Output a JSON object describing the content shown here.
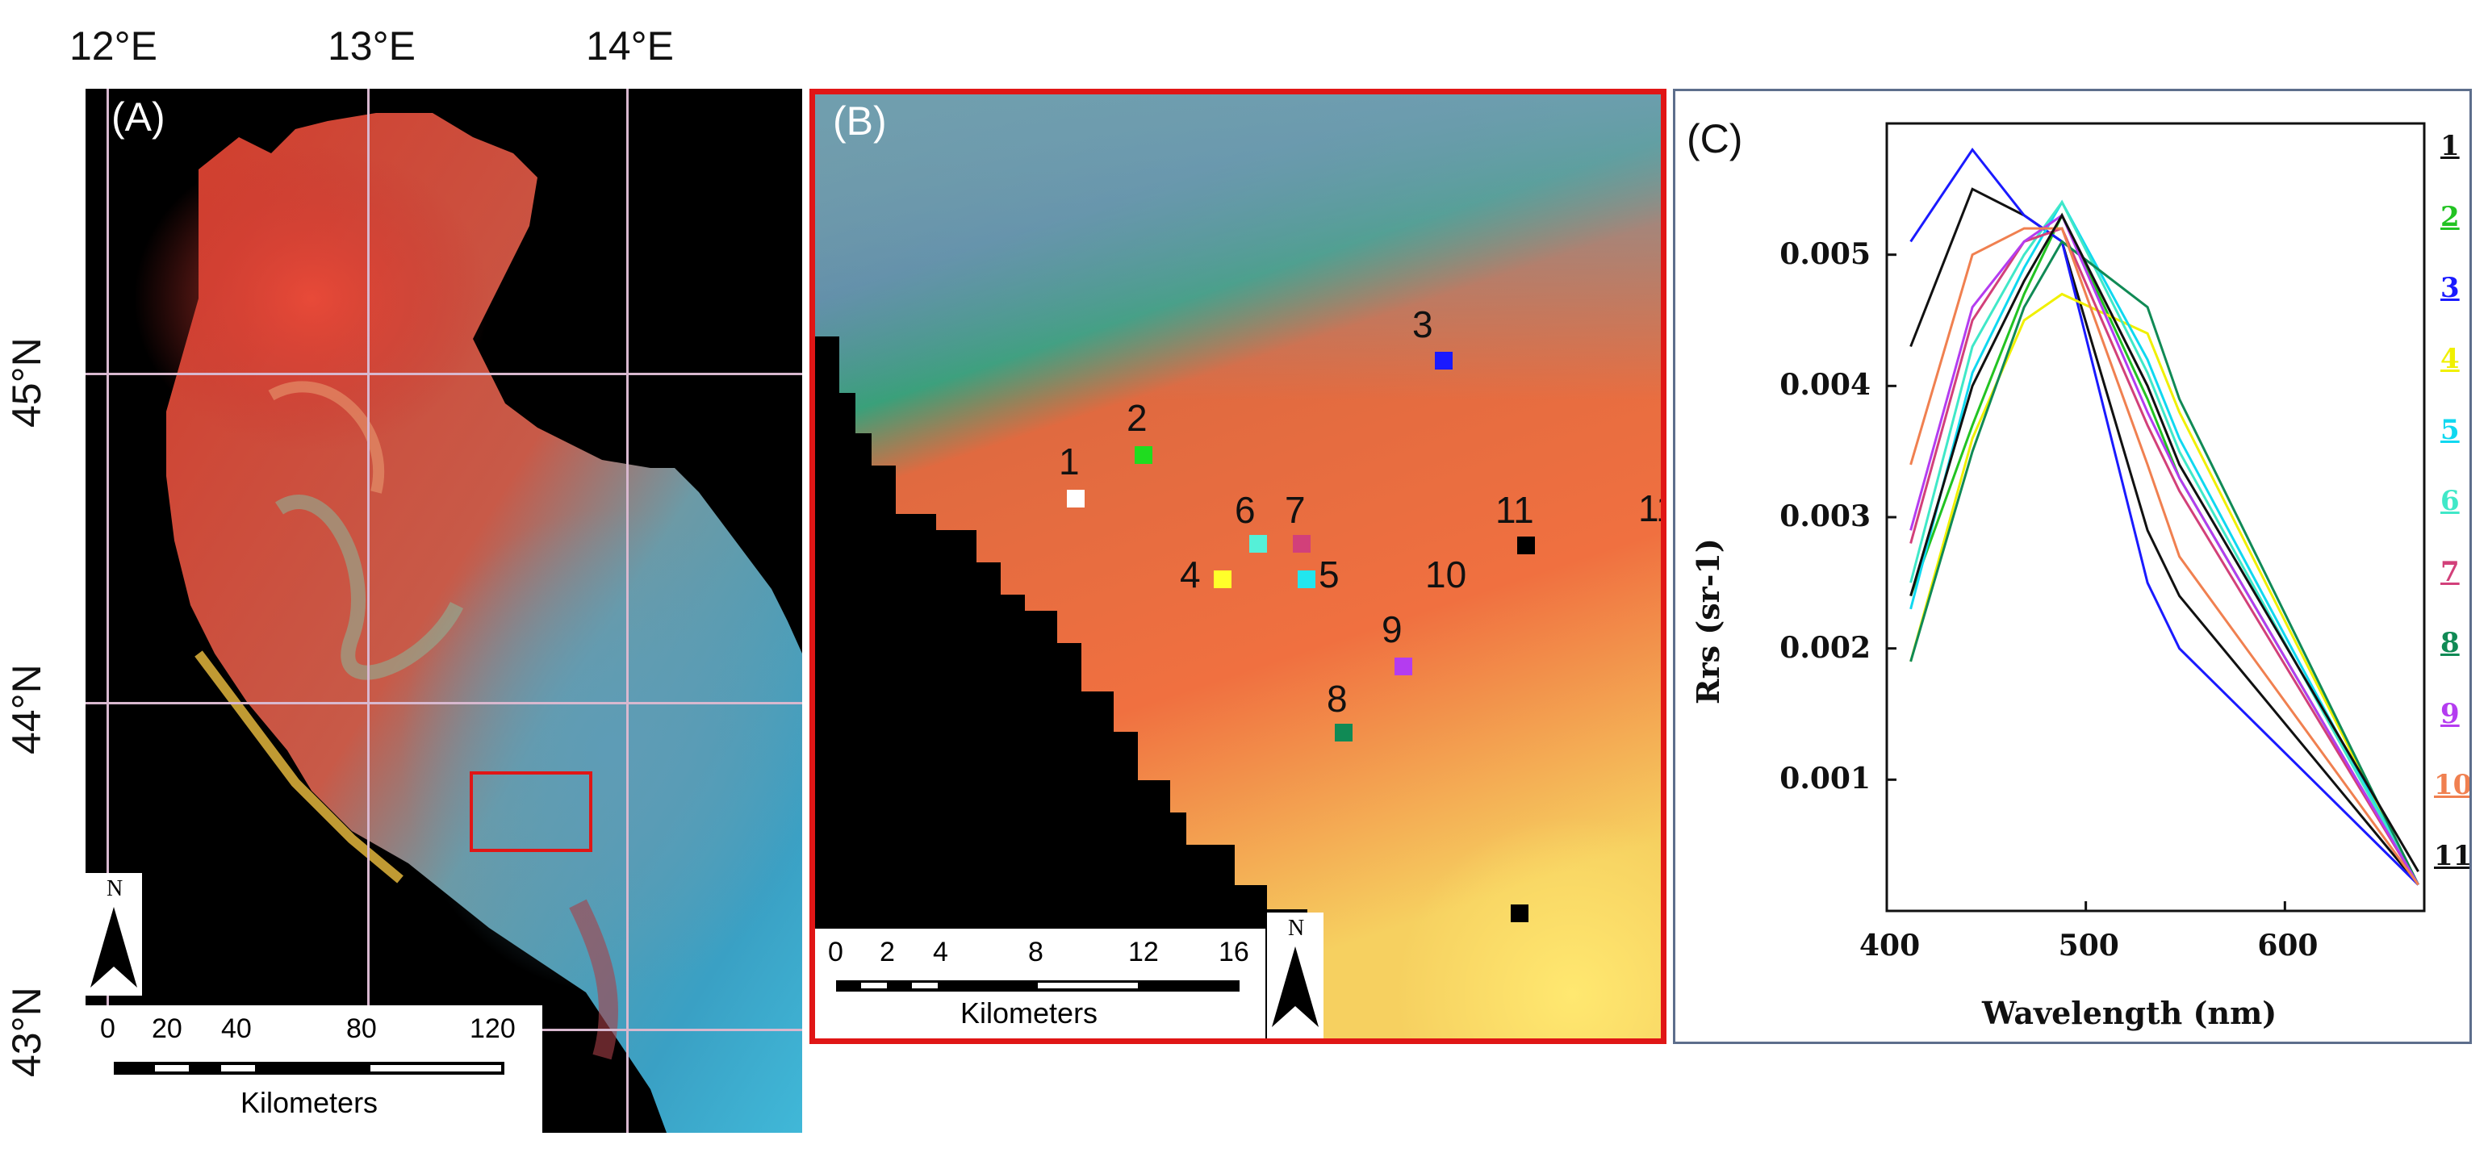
{
  "panel_a": {
    "letter": "(A)",
    "lon_labels": [
      "12°E",
      "13°E",
      "14°E"
    ],
    "lat_labels": [
      "45°N",
      "44°N",
      "43°N"
    ],
    "scalebar": {
      "ticks": [
        "0",
        "20",
        "40",
        "80",
        "120"
      ],
      "unit": "Kilometers"
    },
    "north_letter": "N",
    "inset_box_color": "#e01616"
  },
  "panel_b": {
    "letter": "(B)",
    "scalebar": {
      "ticks": [
        "0",
        "2",
        "4",
        "8",
        "12",
        "16"
      ],
      "unit": "Kilometers"
    },
    "north_letter": "N",
    "stations": [
      {
        "label": "1",
        "color": "#ffffff"
      },
      {
        "label": "2",
        "color": "#1fdc1f"
      },
      {
        "label": "3",
        "color": "#1a1aff"
      },
      {
        "label": "4",
        "color": "#ffff2a"
      },
      {
        "label": "5",
        "color": "#22e6ee"
      },
      {
        "label": "6",
        "color": "#55f0d8"
      },
      {
        "label": "7",
        "color": "#d2407a"
      },
      {
        "label": "8",
        "color": "#108a55"
      },
      {
        "label": "9",
        "color": "#b43cf0"
      },
      {
        "label": "10",
        "color": ""
      },
      {
        "label": "11",
        "color": "#000000"
      }
    ]
  },
  "chart_data": {
    "type": "line",
    "title": "",
    "panel_letter": "(C)",
    "xlabel": "Wavelength (nm)",
    "ylabel": "Rrs (sr-1)",
    "xlim": [
      400,
      670
    ],
    "ylim": [
      0,
      0.006
    ],
    "x_ticks": [
      "400",
      "500",
      "600"
    ],
    "y_ticks": [
      "0.001",
      "0.002",
      "0.003",
      "0.004",
      "0.005"
    ],
    "x_tick_values": [
      400,
      500,
      600
    ],
    "y_tick_values": [
      0.001,
      0.002,
      0.003,
      0.004,
      0.005
    ],
    "x": [
      412,
      443,
      469,
      488,
      531,
      547,
      667
    ],
    "series": [
      {
        "name": "1",
        "color": "#111111",
        "values": [
          0.0043,
          0.0055,
          0.0053,
          0.0051,
          0.0029,
          0.0024,
          0.0002
        ]
      },
      {
        "name": "2",
        "color": "#22c322",
        "values": [
          0.0024,
          0.0037,
          0.0047,
          0.0053,
          0.0039,
          0.0033,
          0.0002
        ]
      },
      {
        "name": "3",
        "color": "#1a1aff",
        "values": [
          0.0051,
          0.0058,
          0.0053,
          0.0051,
          0.0025,
          0.002,
          0.0002
        ]
      },
      {
        "name": "4",
        "color": "#f0f000",
        "values": [
          0.0019,
          0.0036,
          0.0045,
          0.0047,
          0.0044,
          0.0038,
          0.0002
        ]
      },
      {
        "name": "5",
        "color": "#10d8f0",
        "values": [
          0.0023,
          0.0041,
          0.0049,
          0.0054,
          0.0042,
          0.0036,
          0.0002
        ]
      },
      {
        "name": "6",
        "color": "#40e8c8",
        "values": [
          0.0025,
          0.0043,
          0.005,
          0.0054,
          0.0041,
          0.0035,
          0.0002
        ]
      },
      {
        "name": "7",
        "color": "#d2407a",
        "values": [
          0.0028,
          0.0045,
          0.0051,
          0.0052,
          0.0037,
          0.0032,
          0.0002
        ]
      },
      {
        "name": "8",
        "color": "#108a55",
        "values": [
          0.0019,
          0.0035,
          0.0046,
          0.0051,
          0.0046,
          0.0039,
          0.0002
        ]
      },
      {
        "name": "9",
        "color": "#b43cf0",
        "values": [
          0.0029,
          0.0046,
          0.0051,
          0.0053,
          0.0038,
          0.0033,
          0.0002
        ]
      },
      {
        "name": "10",
        "color": "#f08050",
        "values": [
          0.0034,
          0.005,
          0.0052,
          0.0052,
          0.0034,
          0.0027,
          0.0002
        ]
      },
      {
        "name": "11",
        "color": "#111111",
        "values": [
          0.0024,
          0.004,
          0.0048,
          0.0053,
          0.004,
          0.0034,
          0.0003
        ]
      }
    ]
  }
}
